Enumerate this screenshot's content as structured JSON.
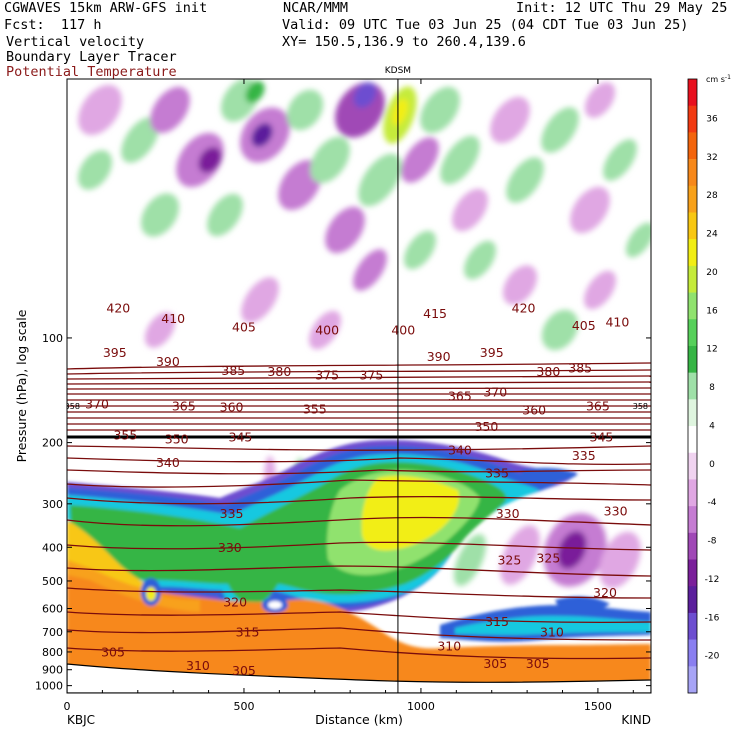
{
  "header": {
    "model": "CGWAVES 15km ARW-GFS init",
    "fcst": "Fcst:  117 h",
    "org": "NCAR/MMM",
    "init": "Init: 12 UTC Thu 29 May 25",
    "valid": "Valid: 09 UTC Tue 03 Jun 25 (04 CDT Tue 03 Jun 25)",
    "xy": "XY= 150.5,136.9 to 260.4,139.6",
    "field1": "Vertical velocity",
    "field2": "Boundary Layer Tracer",
    "field3": "Potential Temperature"
  },
  "colors": {
    "theta_contour": "#7a0c0c",
    "frame": "#000000"
  },
  "chart_data": {
    "type": "heatmap",
    "title": "",
    "station_marker": {
      "label": "KDSM",
      "x_km": 935
    },
    "xlabel": "Distance (km)",
    "ylabel": "Pressure (hPa), log scale",
    "xlim": [
      0,
      1650
    ],
    "ylim": [
      1050,
      18
    ],
    "y_log_scale": true,
    "x_ticks": [
      0,
      500,
      1000,
      1500
    ],
    "y_ticks": [
      100,
      200,
      300,
      400,
      500,
      600,
      700,
      800,
      900,
      1000
    ],
    "x_endpoints": {
      "left": "KBJC",
      "right": "KIND"
    },
    "colorbar": {
      "unit": "cm s",
      "unit_exp": "-1",
      "levels": [
        36,
        32,
        28,
        24,
        20,
        16,
        12,
        8,
        4,
        0,
        -4,
        -8,
        -12,
        -16,
        -20
      ],
      "colors": [
        "#e8101e",
        "#f23a12",
        "#f3640c",
        "#f7881a",
        "#f8a11a",
        "#f8c712",
        "#f2ee14",
        "#c5eb3a",
        "#90e26e",
        "#56d05a",
        "#36b545",
        "#9fe0a8",
        "#dff5df",
        "#ffffff",
        "#f0d3f0",
        "#e0a7e3",
        "#c57cd2",
        "#a048b6",
        "#7a1f9a",
        "#5b1f9c",
        "#6d4ed0",
        "#8a7ff0",
        "#a7a4f6"
      ]
    },
    "theta_labels": [
      {
        "v": "420",
        "x": 145,
        "p": 82
      },
      {
        "v": "410",
        "x": 300,
        "p": 88
      },
      {
        "v": "405",
        "x": 500,
        "p": 93
      },
      {
        "v": "400",
        "x": 735,
        "p": 95
      },
      {
        "v": "400",
        "x": 950,
        "p": 95
      },
      {
        "v": "415",
        "x": 1040,
        "p": 85
      },
      {
        "v": "420",
        "x": 1290,
        "p": 82
      },
      {
        "v": "405",
        "x": 1460,
        "p": 92
      },
      {
        "v": "410",
        "x": 1555,
        "p": 90
      },
      {
        "v": "395",
        "x": 135,
        "p": 110
      },
      {
        "v": "390",
        "x": 285,
        "p": 117
      },
      {
        "v": "385",
        "x": 470,
        "p": 124
      },
      {
        "v": "380",
        "x": 600,
        "p": 125
      },
      {
        "v": "375",
        "x": 735,
        "p": 128
      },
      {
        "v": "375",
        "x": 860,
        "p": 128
      },
      {
        "v": "390",
        "x": 1050,
        "p": 113
      },
      {
        "v": "395",
        "x": 1200,
        "p": 110
      },
      {
        "v": "380",
        "x": 1360,
        "p": 125
      },
      {
        "v": "385",
        "x": 1450,
        "p": 122
      },
      {
        "v": "370",
        "x": 85,
        "p": 155
      },
      {
        "v": "365",
        "x": 330,
        "p": 157
      },
      {
        "v": "360",
        "x": 465,
        "p": 158
      },
      {
        "v": "355",
        "x": 700,
        "p": 160
      },
      {
        "v": "365",
        "x": 1110,
        "p": 147
      },
      {
        "v": "370",
        "x": 1210,
        "p": 143
      },
      {
        "v": "360",
        "x": 1320,
        "p": 161
      },
      {
        "v": "365",
        "x": 1500,
        "p": 157
      },
      {
        "v": "355",
        "x": 165,
        "p": 190
      },
      {
        "v": "350",
        "x": 310,
        "p": 195
      },
      {
        "v": "345",
        "x": 490,
        "p": 193
      },
      {
        "v": "340",
        "x": 285,
        "p": 228
      },
      {
        "v": "350",
        "x": 1185,
        "p": 180
      },
      {
        "v": "345",
        "x": 1510,
        "p": 193
      },
      {
        "v": "340",
        "x": 1110,
        "p": 210
      },
      {
        "v": "335",
        "x": 1460,
        "p": 218
      },
      {
        "v": "335",
        "x": 1215,
        "p": 245
      },
      {
        "v": "335",
        "x": 465,
        "p": 320
      },
      {
        "v": "330",
        "x": 1245,
        "p": 320
      },
      {
        "v": "330",
        "x": 1550,
        "p": 315
      },
      {
        "v": "330",
        "x": 460,
        "p": 400
      },
      {
        "v": "325",
        "x": 1250,
        "p": 435
      },
      {
        "v": "325",
        "x": 1360,
        "p": 430
      },
      {
        "v": "320",
        "x": 475,
        "p": 575
      },
      {
        "v": "320",
        "x": 1520,
        "p": 540
      },
      {
        "v": "315",
        "x": 510,
        "p": 700
      },
      {
        "v": "315",
        "x": 1215,
        "p": 655
      },
      {
        "v": "310",
        "x": 1370,
        "p": 700
      },
      {
        "v": "310",
        "x": 1080,
        "p": 770
      },
      {
        "v": "305",
        "x": 130,
        "p": 800
      },
      {
        "v": "310",
        "x": 370,
        "p": 875
      },
      {
        "v": "305",
        "x": 500,
        "p": 905
      },
      {
        "v": "305",
        "x": 1210,
        "p": 865
      },
      {
        "v": "305",
        "x": 1330,
        "p": 865
      }
    ],
    "tropopause_labels": [
      {
        "v": "358",
        "x": 15,
        "p": 157
      },
      {
        "v": "358",
        "x": 1620,
        "p": 157
      }
    ]
  }
}
